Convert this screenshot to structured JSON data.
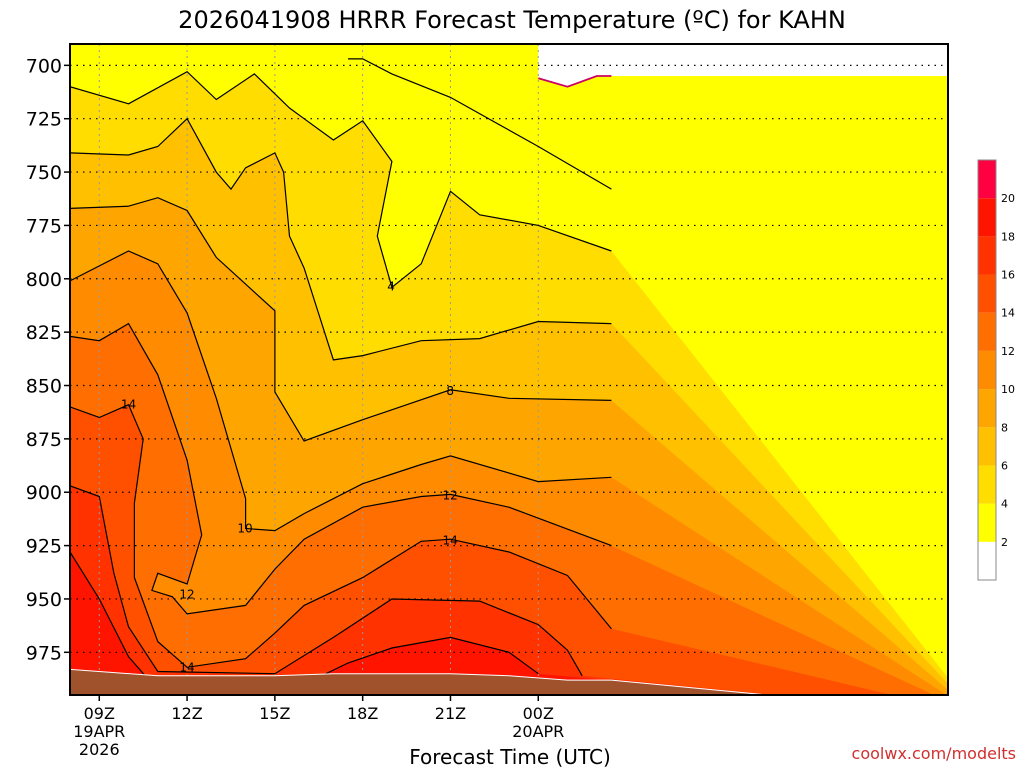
{
  "chart_data": {
    "type": "heatmap",
    "title": "2026041908 HRRR Forecast Temperature (ºC) for KAHN",
    "xlabel": "Forecast Time (UTC)",
    "ylabel": "",
    "credit": "coolwx.com/modelts",
    "x_range_hours_after_0900Z": [
      -1,
      29
    ],
    "x_ticks": [
      {
        "hour": 0,
        "lines": [
          "09Z",
          "19APR",
          "2026"
        ]
      },
      {
        "hour": 3,
        "lines": [
          "12Z"
        ]
      },
      {
        "hour": 6,
        "lines": [
          "15Z"
        ]
      },
      {
        "hour": 9,
        "lines": [
          "18Z"
        ]
      },
      {
        "hour": 12,
        "lines": [
          "21Z"
        ]
      },
      {
        "hour": 15,
        "lines": [
          "00Z",
          "20APR"
        ]
      }
    ],
    "y_axis": {
      "label": "",
      "units": "hPa",
      "range": [
        690,
        995
      ],
      "inverted": true
    },
    "y_ticks": [
      700,
      725,
      750,
      775,
      800,
      825,
      850,
      875,
      900,
      925,
      950,
      975
    ],
    "grid": "dotted",
    "legend": {
      "position": "right",
      "levels": [
        2,
        4,
        6,
        8,
        10,
        12,
        14,
        16,
        18,
        20
      ]
    },
    "colors": {
      "lt2": "#ffffff",
      "2_4": "#ffff00",
      "4_6": "#ffdd00",
      "6_8": "#ffc000",
      "8_10": "#ffa500",
      "10_12": "#ff8c00",
      "12_14": "#ff6e00",
      "14_16": "#ff5000",
      "16_18": "#ff3200",
      "18_20": "#ff1400",
      "gt20": "#ff0040",
      "ground": "#a0522d",
      "zero_line": "#cc0066"
    },
    "contour_labels": [
      {
        "value": "4",
        "hour": 9.97,
        "p": 803.5
      },
      {
        "value": "8",
        "hour": 11.99,
        "p": 852.5
      },
      {
        "value": "12",
        "hour": 11.99,
        "p": 901.5
      },
      {
        "value": "14",
        "hour": 11.99,
        "p": 922.5
      },
      {
        "value": "14",
        "hour": 1.0,
        "p": 859.0
      },
      {
        "value": "12",
        "hour": 3.0,
        "p": 948.0
      },
      {
        "value": "14",
        "hour": 3.0,
        "p": 982.0
      },
      {
        "value": "10",
        "hour": 4.98,
        "p": 917.0
      }
    ],
    "contours": [
      {
        "value": 2,
        "points": [
          [
            15.0,
            706.0
          ],
          [
            16.0,
            710.0
          ],
          [
            17.0,
            705.0
          ],
          [
            17.5,
            705.0
          ]
        ]
      },
      {
        "value": 4,
        "points": [
          [
            8.5,
            697.0
          ],
          [
            9.0,
            697.0
          ],
          [
            10.0,
            704.0
          ],
          [
            12.0,
            715.0
          ],
          [
            15.0,
            738.0
          ],
          [
            17.5,
            758.0
          ]
        ]
      },
      {
        "value": 4,
        "points": [
          [
            -1.0,
            710.0
          ],
          [
            1.0,
            718.0
          ],
          [
            3.0,
            703.0
          ],
          [
            4.0,
            716.0
          ],
          [
            5.3,
            704.0
          ],
          [
            6.5,
            720.0
          ],
          [
            7.0,
            725.0
          ],
          [
            8.0,
            735.0
          ],
          [
            9.0,
            726.0
          ],
          [
            10.0,
            745.0
          ],
          [
            9.5,
            780.0
          ],
          [
            10.0,
            804.0
          ],
          [
            11.0,
            793.0
          ],
          [
            12.0,
            759.0
          ],
          [
            13.0,
            770.0
          ],
          [
            15.0,
            775.0
          ],
          [
            17.5,
            787.0
          ]
        ]
      },
      {
        "value": 6,
        "points": [
          [
            -1.0,
            741.0
          ],
          [
            1.0,
            742.0
          ],
          [
            2.0,
            738.0
          ],
          [
            3.0,
            725.0
          ],
          [
            4.0,
            750.0
          ],
          [
            4.5,
            758.0
          ],
          [
            5.0,
            748.0
          ],
          [
            6.0,
            741.0
          ],
          [
            6.3,
            750.0
          ],
          [
            6.5,
            780.0
          ],
          [
            7.0,
            795.0
          ],
          [
            8.0,
            838.0
          ],
          [
            9.0,
            836.0
          ],
          [
            11.0,
            829.0
          ],
          [
            13.0,
            828.0
          ],
          [
            15.0,
            820.0
          ],
          [
            17.5,
            821.0
          ]
        ]
      },
      {
        "value": 8,
        "points": [
          [
            -1.0,
            767.0
          ],
          [
            1.0,
            766.0
          ],
          [
            2.0,
            762.0
          ],
          [
            3.0,
            768.0
          ],
          [
            4.0,
            790.0
          ],
          [
            6.0,
            815.0
          ],
          [
            6.0,
            853.0
          ],
          [
            7.0,
            876.0
          ],
          [
            9.0,
            866.0
          ],
          [
            12.0,
            852.0
          ],
          [
            14.0,
            856.0
          ],
          [
            17.5,
            857.0
          ]
        ]
      },
      {
        "value": 10,
        "points": [
          [
            -1.0,
            801.0
          ],
          [
            1.0,
            787.0
          ],
          [
            2.0,
            793.0
          ],
          [
            3.0,
            816.0
          ],
          [
            4.0,
            856.0
          ],
          [
            5.0,
            903.0
          ],
          [
            5.0,
            917.0
          ],
          [
            6.0,
            918.0
          ],
          [
            7.0,
            910.0
          ],
          [
            9.0,
            896.0
          ],
          [
            11.0,
            887.0
          ],
          [
            12.0,
            883.0
          ],
          [
            15.0,
            895.0
          ],
          [
            17.5,
            893.0
          ]
        ]
      },
      {
        "value": 12,
        "points": [
          [
            -1.0,
            827.0
          ],
          [
            0.0,
            829.0
          ],
          [
            1.0,
            821.0
          ],
          [
            2.0,
            845.0
          ],
          [
            3.0,
            885.0
          ],
          [
            3.5,
            920.0
          ],
          [
            3.0,
            943.0
          ],
          [
            2.0,
            938.0
          ],
          [
            1.8,
            946.0
          ],
          [
            2.5,
            949.0
          ],
          [
            3.0,
            957.0
          ],
          [
            4.0,
            955.0
          ],
          [
            5.0,
            953.0
          ],
          [
            6.0,
            936.0
          ],
          [
            7.0,
            922.0
          ],
          [
            9.0,
            907.0
          ],
          [
            11.0,
            902.0
          ],
          [
            12.0,
            901.0
          ],
          [
            14.0,
            907.0
          ],
          [
            17.5,
            925.0
          ]
        ]
      },
      {
        "value": 14,
        "points": [
          [
            -1.0,
            860.0
          ],
          [
            0.0,
            865.0
          ],
          [
            1.0,
            859.0
          ],
          [
            1.5,
            875.0
          ],
          [
            1.2,
            905.0
          ],
          [
            1.2,
            940.0
          ],
          [
            2.0,
            970.0
          ],
          [
            3.0,
            982.0
          ],
          [
            5.0,
            978.0
          ],
          [
            6.0,
            966.0
          ],
          [
            7.0,
            953.0
          ],
          [
            9.0,
            940.0
          ],
          [
            11.0,
            923.0
          ],
          [
            12.0,
            922.0
          ],
          [
            14.0,
            928.0
          ],
          [
            16.0,
            939.0
          ],
          [
            17.5,
            964.0
          ]
        ]
      },
      {
        "value": 16,
        "points": [
          [
            -1.0,
            897.0
          ],
          [
            0.0,
            902.0
          ],
          [
            0.5,
            938.0
          ],
          [
            1.0,
            963.0
          ],
          [
            2.0,
            984.0
          ],
          [
            6.0,
            985.0
          ],
          [
            8.0,
            968.0
          ],
          [
            10.0,
            950.0
          ],
          [
            13.0,
            951.0
          ],
          [
            15.0,
            962.0
          ],
          [
            16.0,
            974.0
          ],
          [
            16.5,
            986.0
          ]
        ]
      },
      {
        "value": 18,
        "points": [
          [
            -1.0,
            928.0
          ],
          [
            0.0,
            950.0
          ],
          [
            1.0,
            977.0
          ],
          [
            1.7,
            988.0
          ],
          [
            7.0,
            990.0
          ],
          [
            8.5,
            980.0
          ],
          [
            10.0,
            973.0
          ],
          [
            12.0,
            968.0
          ],
          [
            14.0,
            975.0
          ],
          [
            15.0,
            985.0
          ]
        ]
      }
    ]
  }
}
